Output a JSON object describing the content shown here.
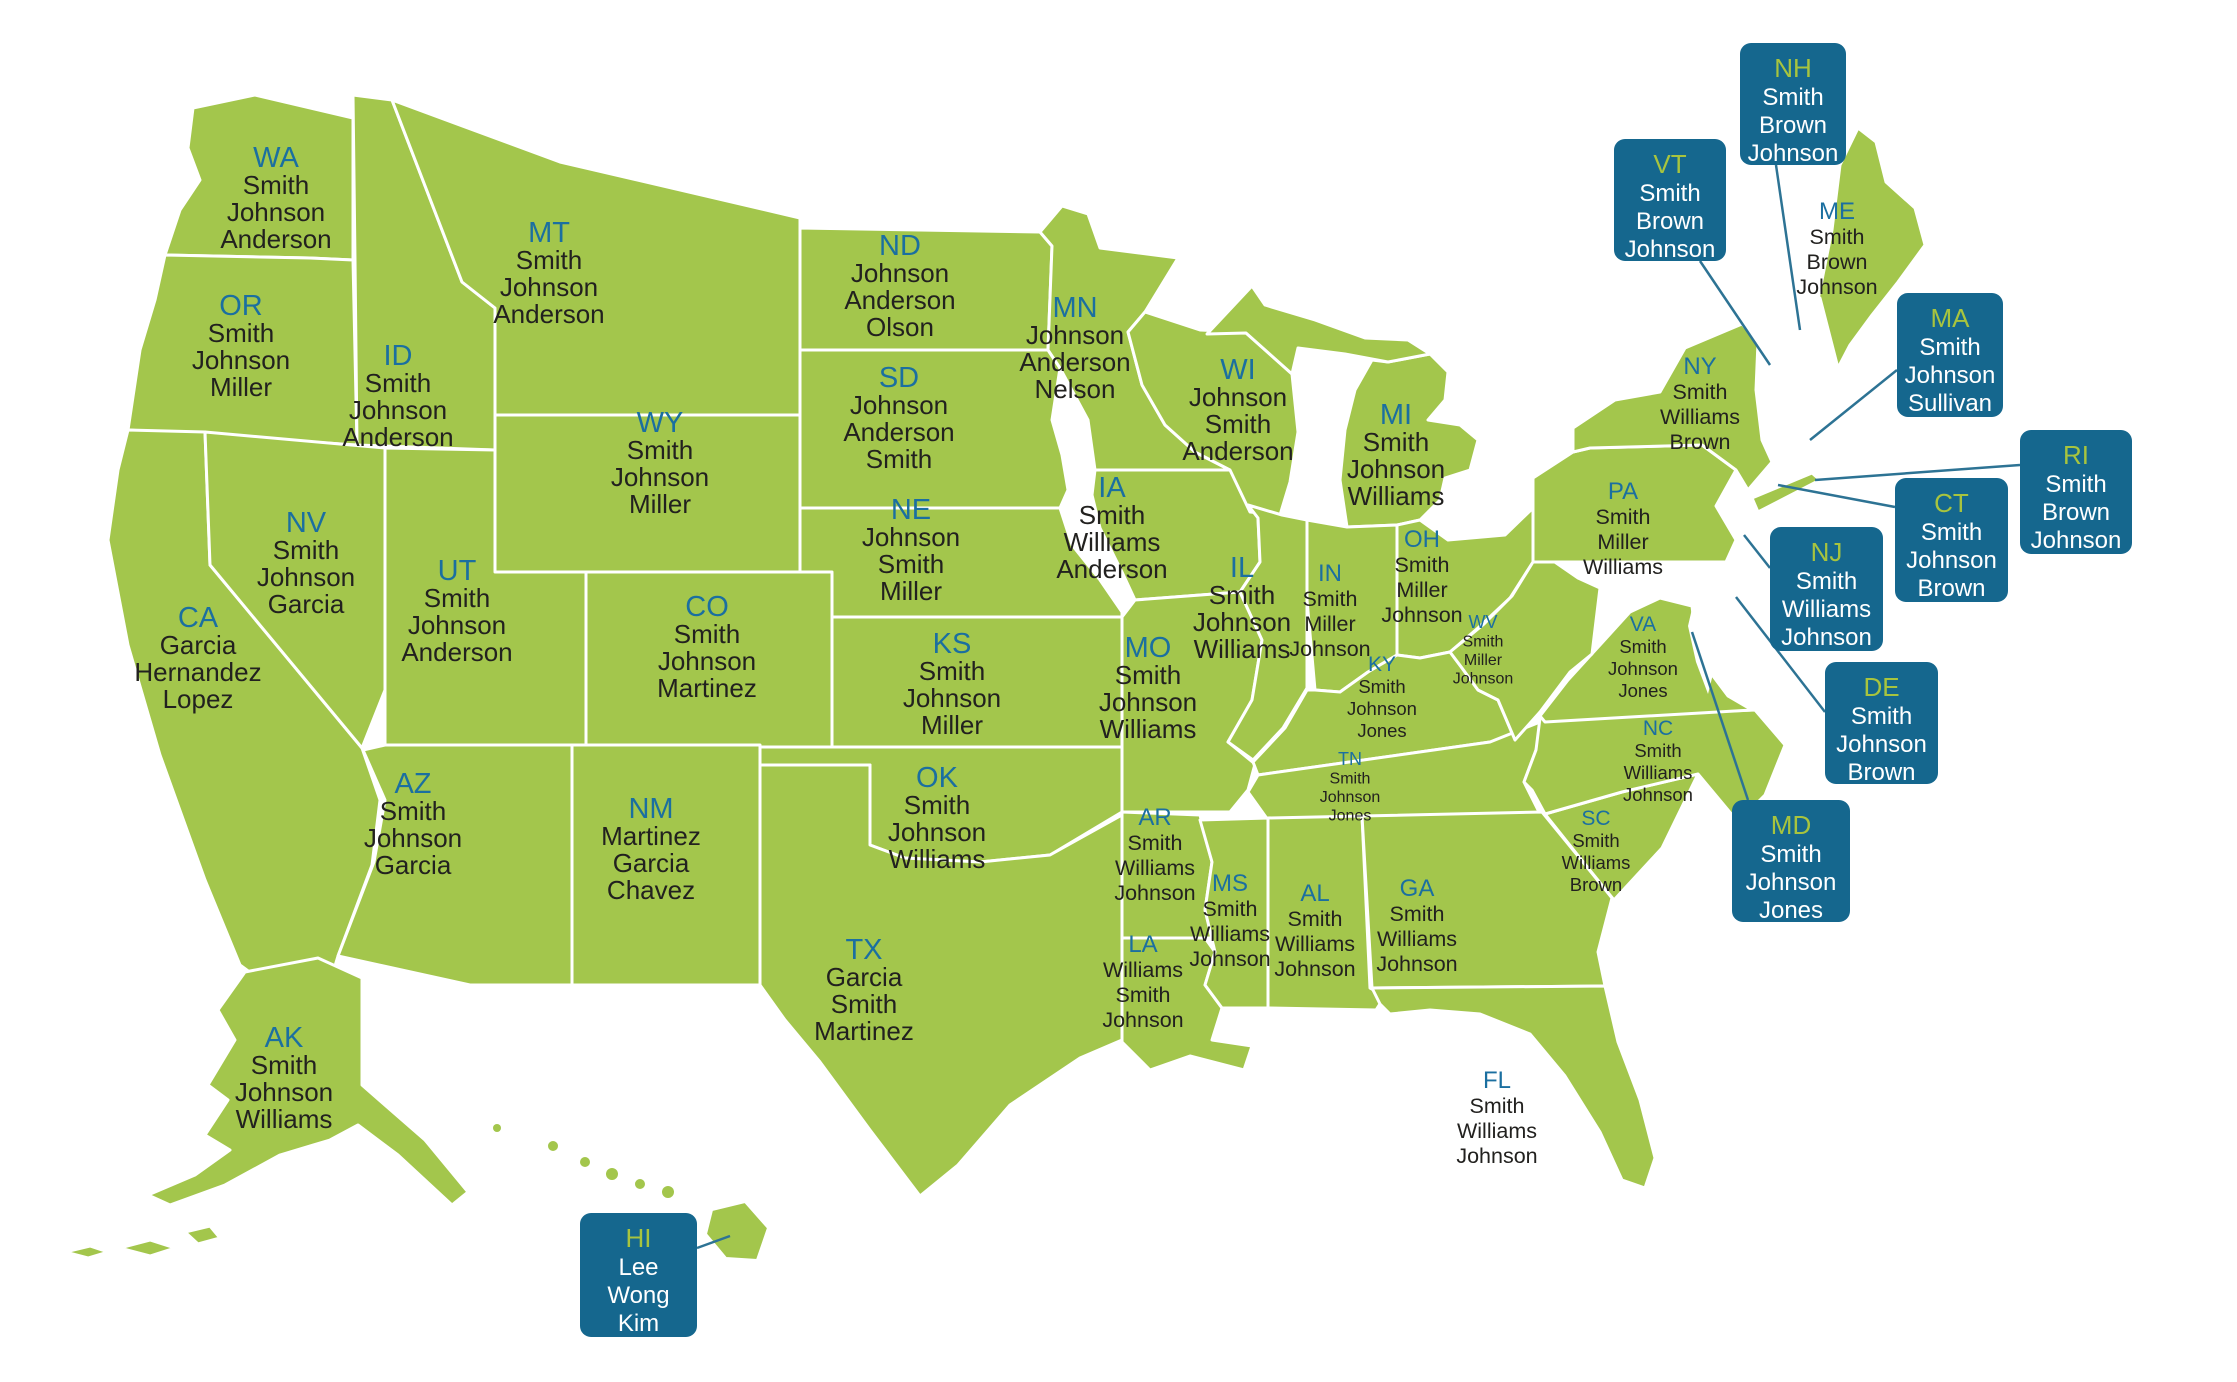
{
  "map": {
    "colors": {
      "background": "#ffffff",
      "land": "#a3c64c",
      "state_border": "#ffffff",
      "abbr_text": "#1b6fa0",
      "name_text": "#22211f",
      "callout_bg": "#15678e",
      "callout_abbr": "#a8c43e",
      "callout_text": "#ffffff",
      "leader_line": "#2d7394"
    },
    "states": [
      {
        "abbr": "WA",
        "names": [
          "Smith",
          "Johnson",
          "Anderson"
        ]
      },
      {
        "abbr": "OR",
        "names": [
          "Smith",
          "Johnson",
          "Miller"
        ]
      },
      {
        "abbr": "CA",
        "names": [
          "Garcia",
          "Hernandez",
          "Lopez"
        ]
      },
      {
        "abbr": "NV",
        "names": [
          "Smith",
          "Johnson",
          "Garcia"
        ]
      },
      {
        "abbr": "ID",
        "names": [
          "Smith",
          "Johnson",
          "Anderson"
        ]
      },
      {
        "abbr": "MT",
        "names": [
          "Smith",
          "Johnson",
          "Anderson"
        ]
      },
      {
        "abbr": "WY",
        "names": [
          "Smith",
          "Johnson",
          "Miller"
        ]
      },
      {
        "abbr": "UT",
        "names": [
          "Smith",
          "Johnson",
          "Anderson"
        ]
      },
      {
        "abbr": "CO",
        "names": [
          "Smith",
          "Johnson",
          "Martinez"
        ]
      },
      {
        "abbr": "AZ",
        "names": [
          "Smith",
          "Johnson",
          "Garcia"
        ]
      },
      {
        "abbr": "NM",
        "names": [
          "Martinez",
          "Garcia",
          "Chavez"
        ]
      },
      {
        "abbr": "ND",
        "names": [
          "Johnson",
          "Anderson",
          "Olson"
        ]
      },
      {
        "abbr": "SD",
        "names": [
          "Johnson",
          "Anderson",
          "Smith"
        ]
      },
      {
        "abbr": "NE",
        "names": [
          "Johnson",
          "Smith",
          "Miller"
        ]
      },
      {
        "abbr": "KS",
        "names": [
          "Smith",
          "Johnson",
          "Miller"
        ]
      },
      {
        "abbr": "OK",
        "names": [
          "Smith",
          "Johnson",
          "Williams"
        ]
      },
      {
        "abbr": "TX",
        "names": [
          "Garcia",
          "Smith",
          "Martinez"
        ]
      },
      {
        "abbr": "MN",
        "names": [
          "Johnson",
          "Anderson",
          "Nelson"
        ]
      },
      {
        "abbr": "IA",
        "names": [
          "Smith",
          "Williams",
          "Anderson"
        ]
      },
      {
        "abbr": "MO",
        "names": [
          "Smith",
          "Johnson",
          "Williams"
        ]
      },
      {
        "abbr": "AR",
        "names": [
          "Smith",
          "Williams",
          "Johnson"
        ]
      },
      {
        "abbr": "LA",
        "names": [
          "Williams",
          "Smith",
          "Johnson"
        ]
      },
      {
        "abbr": "WI",
        "names": [
          "Johnson",
          "Smith",
          "Anderson"
        ]
      },
      {
        "abbr": "IL",
        "names": [
          "Smith",
          "Johnson",
          "Williams"
        ]
      },
      {
        "abbr": "MI",
        "names": [
          "Smith",
          "Johnson",
          "Williams"
        ]
      },
      {
        "abbr": "IN",
        "names": [
          "Smith",
          "Miller",
          "Johnson"
        ]
      },
      {
        "abbr": "OH",
        "names": [
          "Smith",
          "Miller",
          "Johnson"
        ]
      },
      {
        "abbr": "KY",
        "names": [
          "Smith",
          "Johnson",
          "Jones"
        ]
      },
      {
        "abbr": "TN",
        "names": [
          "Smith",
          "Johnson",
          "Jones"
        ]
      },
      {
        "abbr": "MS",
        "names": [
          "Smith",
          "Williams",
          "Johnson"
        ]
      },
      {
        "abbr": "AL",
        "names": [
          "Smith",
          "Williams",
          "Johnson"
        ]
      },
      {
        "abbr": "GA",
        "names": [
          "Smith",
          "Williams",
          "Johnson"
        ]
      },
      {
        "abbr": "FL",
        "names": [
          "Smith",
          "Williams",
          "Johnson"
        ]
      },
      {
        "abbr": "SC",
        "names": [
          "Smith",
          "Williams",
          "Brown"
        ]
      },
      {
        "abbr": "NC",
        "names": [
          "Smith",
          "Williams",
          "Johnson"
        ]
      },
      {
        "abbr": "VA",
        "names": [
          "Smith",
          "Johnson",
          "Jones"
        ]
      },
      {
        "abbr": "WV",
        "names": [
          "Smith",
          "Miller",
          "Johnson"
        ]
      },
      {
        "abbr": "PA",
        "names": [
          "Smith",
          "Miller",
          "Williams"
        ]
      },
      {
        "abbr": "NY",
        "names": [
          "Smith",
          "Williams",
          "Brown"
        ]
      },
      {
        "abbr": "ME",
        "names": [
          "Smith",
          "Brown",
          "Johnson"
        ]
      },
      {
        "abbr": "AK",
        "names": [
          "Smith",
          "Johnson",
          "Williams"
        ]
      }
    ],
    "callouts": [
      {
        "abbr": "NH",
        "names": [
          "Smith",
          "Brown",
          "Johnson"
        ]
      },
      {
        "abbr": "VT",
        "names": [
          "Smith",
          "Brown",
          "Johnson"
        ]
      },
      {
        "abbr": "MA",
        "names": [
          "Smith",
          "Johnson",
          "Sullivan"
        ]
      },
      {
        "abbr": "RI",
        "names": [
          "Smith",
          "Brown",
          "Johnson"
        ]
      },
      {
        "abbr": "CT",
        "names": [
          "Smith",
          "Johnson",
          "Brown"
        ]
      },
      {
        "abbr": "NJ",
        "names": [
          "Smith",
          "Williams",
          "Johnson"
        ]
      },
      {
        "abbr": "DE",
        "names": [
          "Smith",
          "Johnson",
          "Brown"
        ]
      },
      {
        "abbr": "MD",
        "names": [
          "Smith",
          "Johnson",
          "Jones"
        ]
      },
      {
        "abbr": "HI",
        "names": [
          "Lee",
          "Wong",
          "Kim"
        ]
      }
    ]
  }
}
